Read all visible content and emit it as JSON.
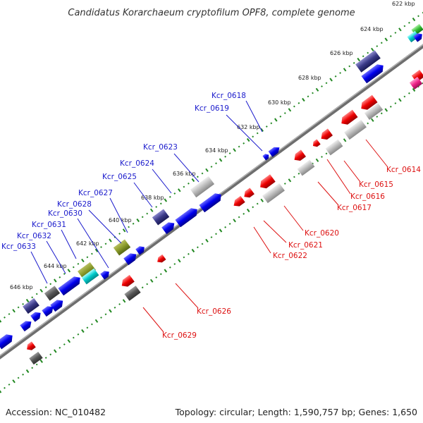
{
  "title": "Candidatus Korarchaeum cryptofilum OPF8, complete genome",
  "footer": {
    "accession": "Accession: NC_010482",
    "summary": "Topology: circular; Length: 1,590,757 bp; Genes: 1,650"
  },
  "colors": {
    "forward_label": "#1a1acc",
    "reverse_label": "#dd1111",
    "kbp_dots": "#228822",
    "backbone": "#777777"
  },
  "scale_ticks": [
    "622 kbp",
    "624 kbp",
    "626 kbp",
    "628 kbp",
    "630 kbp",
    "632 kbp",
    "634 kbp",
    "636 kbp",
    "638 kbp",
    "640 kbp",
    "642 kbp",
    "644 kbp",
    "646 kbp"
  ],
  "forward_genes": [
    "Kcr_0618",
    "Kcr_0619",
    "Kcr_0623",
    "Kcr_0624",
    "Kcr_0625",
    "Kcr_0627",
    "Kcr_0628",
    "Kcr_0630",
    "Kcr_0631",
    "Kcr_0632",
    "Kcr_0633"
  ],
  "reverse_genes": [
    "Kcr_0614",
    "Kcr_0615",
    "Kcr_0616",
    "Kcr_0617",
    "Kcr_0620",
    "Kcr_0621",
    "Kcr_0622",
    "Kcr_0626",
    "Kcr_0629"
  ]
}
